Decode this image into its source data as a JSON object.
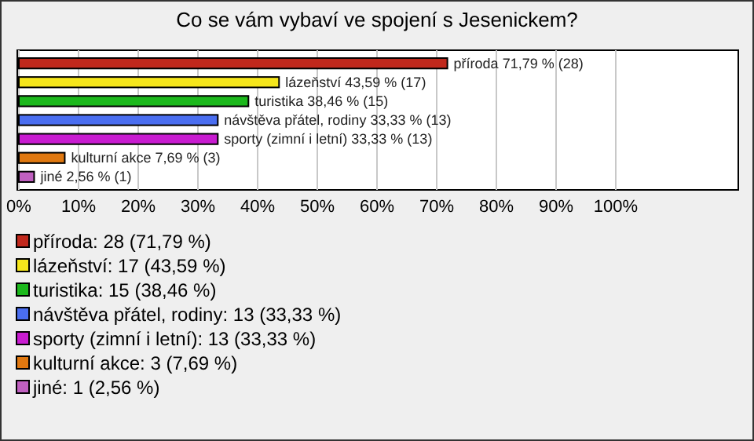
{
  "chart_data": {
    "type": "bar",
    "orientation": "horizontal",
    "title": "Co se vám vybaví ve spojení s Jesenickem?",
    "categories": [
      null,
      null,
      null,
      null,
      null,
      null,
      null
    ],
    "values": [
      71.79,
      43.59,
      38.46,
      33.33,
      33.33,
      7.69,
      2.56
    ],
    "value_labels": [
      "příroda 71,79 % (28)",
      "lázeňství 43,59 % (17)",
      "turistika 38,46 % (15)",
      "návštěva přátel, rodiny 33,33 % (13)",
      "sporty (zimní i letní) 33,33 % (13)",
      "kulturní akce 7,69 % (3)",
      "jiné 2,56 % (1)"
    ],
    "colors": [
      "#c0281c",
      "#f5e61c",
      "#1cb81c",
      "#4a6ef0",
      "#c81cd0",
      "#e07810",
      "#c060c0"
    ],
    "xlim": [
      0,
      120
    ],
    "xticks": [
      {
        "value": 0,
        "label": "0%"
      },
      {
        "value": 10,
        "label": "10%"
      },
      {
        "value": 20,
        "label": "20%"
      },
      {
        "value": 30,
        "label": "30%"
      },
      {
        "value": 40,
        "label": "40%"
      },
      {
        "value": 50,
        "label": "50%"
      },
      {
        "value": 60,
        "label": "60%"
      },
      {
        "value": 70,
        "label": "70%"
      },
      {
        "value": 80,
        "label": "80%"
      },
      {
        "value": 90,
        "label": "90%"
      },
      {
        "value": 100,
        "label": "100%"
      }
    ],
    "grid": "x",
    "tick_labels": "x",
    "annotations": [
      "příroda: 28 (71,79 %)",
      "lázeňství: 17 (43,59 %)",
      "turistika: 15 (38,46 %)",
      "návštěva přátel, rodiny: 13 (33,33 %)",
      "sporty (zimní i letní): 13 (33,33 %)",
      "kulturní akce: 3 (7,69 %)",
      "jiné: 1 (2,56 %)"
    ]
  }
}
